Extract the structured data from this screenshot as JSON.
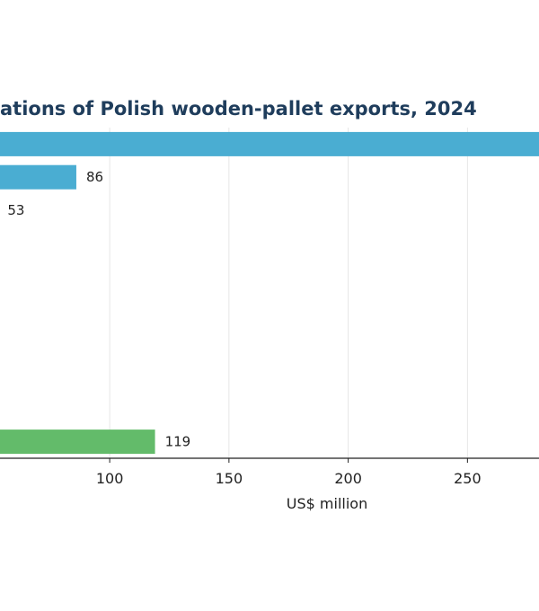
{
  "chart_data": {
    "type": "bar",
    "orientation": "horizontal",
    "title": "ations of Polish wooden-pallet exports, 2024",
    "xlabel": "US$ million",
    "ylabel": "",
    "xlim": [
      54,
      280
    ],
    "xticks": [
      100,
      150,
      200,
      250
    ],
    "grid": true,
    "bars": [
      {
        "value": 290,
        "label": "",
        "color": "#4aadd2"
      },
      {
        "value": 86,
        "label": "86",
        "color": "#4aadd2"
      },
      {
        "value": 53,
        "label": "53",
        "color": "#4aadd2"
      },
      {
        "value": 119,
        "label": "119",
        "color": "#63bb6a"
      }
    ],
    "rows_visible": 10,
    "bar_rows": [
      0,
      1,
      2,
      9
    ]
  }
}
